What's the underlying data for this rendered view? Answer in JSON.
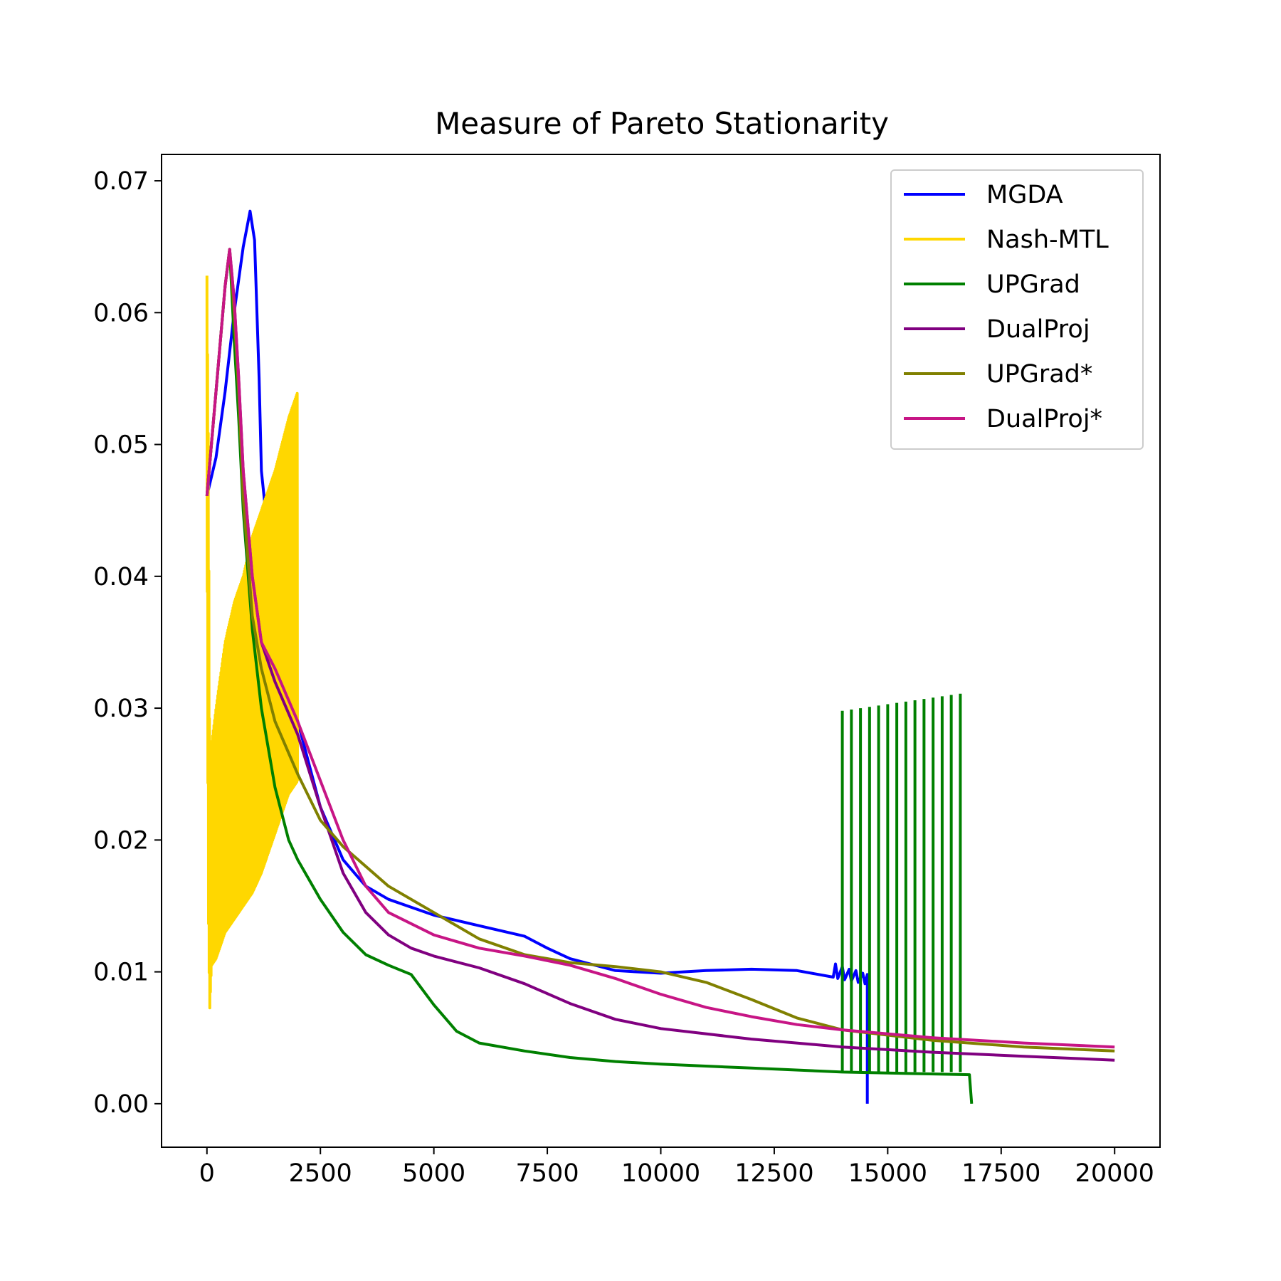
{
  "chart_data": {
    "type": "line",
    "title": "Measure of Pareto Stationarity",
    "xlabel": "",
    "ylabel": "",
    "xlim": [
      -1000,
      21000
    ],
    "ylim": [
      -0.0033,
      0.072
    ],
    "x_ticks": [
      0,
      2500,
      5000,
      7500,
      10000,
      12500,
      15000,
      17500,
      20000
    ],
    "x_tick_labels": [
      "0",
      "2500",
      "5000",
      "7500",
      "10000",
      "12500",
      "15000",
      "17500",
      "20000"
    ],
    "y_ticks": [
      0.0,
      0.01,
      0.02,
      0.03,
      0.04,
      0.05,
      0.06,
      0.07
    ],
    "y_tick_labels": [
      "0.00",
      "0.01",
      "0.02",
      "0.03",
      "0.04",
      "0.05",
      "0.06",
      "0.07"
    ],
    "grid": false,
    "legend_position": "top-right",
    "series": [
      {
        "name": "MGDA",
        "color": "#0000ff",
        "points": [
          [
            0,
            0.0461
          ],
          [
            200,
            0.049
          ],
          [
            400,
            0.054
          ],
          [
            600,
            0.06
          ],
          [
            800,
            0.065
          ],
          [
            950,
            0.0677
          ],
          [
            1050,
            0.0655
          ],
          [
            1150,
            0.055
          ],
          [
            1200,
            0.048
          ],
          [
            1500,
            0.038
          ],
          [
            2000,
            0.029
          ],
          [
            2500,
            0.0225
          ],
          [
            3000,
            0.0185
          ],
          [
            3500,
            0.0165
          ],
          [
            4000,
            0.0155
          ],
          [
            5000,
            0.0143
          ],
          [
            6000,
            0.0135
          ],
          [
            7000,
            0.0127
          ],
          [
            7500,
            0.0118
          ],
          [
            8000,
            0.011
          ],
          [
            9000,
            0.0101
          ],
          [
            10000,
            0.0099
          ],
          [
            11000,
            0.0101
          ],
          [
            12000,
            0.0102
          ],
          [
            13000,
            0.0101
          ],
          [
            13800,
            0.0096
          ],
          [
            13850,
            0.0106
          ],
          [
            13900,
            0.0095
          ],
          [
            14000,
            0.0104
          ],
          [
            14050,
            0.0094
          ],
          [
            14150,
            0.0102
          ],
          [
            14200,
            0.0093
          ],
          [
            14300,
            0.0101
          ],
          [
            14350,
            0.0092
          ],
          [
            14450,
            0.0099
          ],
          [
            14500,
            0.0091
          ],
          [
            14550,
            0.0098
          ],
          [
            14550,
            0.0
          ]
        ]
      },
      {
        "name": "Nash-MTL",
        "color": "#ffd700",
        "oscillating": true,
        "upper_envelope": [
          [
            0,
            0.0628
          ],
          [
            30,
            0.05
          ],
          [
            60,
            0.026
          ],
          [
            200,
            0.03
          ],
          [
            400,
            0.035
          ],
          [
            600,
            0.038
          ],
          [
            800,
            0.04
          ],
          [
            1000,
            0.043
          ],
          [
            1200,
            0.045
          ],
          [
            1500,
            0.048
          ],
          [
            1800,
            0.052
          ],
          [
            2000,
            0.054
          ]
        ],
        "lower_envelope": [
          [
            0,
            0.0461
          ],
          [
            30,
            0.015
          ],
          [
            60,
            0.007
          ],
          [
            100,
            0.0105
          ],
          [
            200,
            0.011
          ],
          [
            400,
            0.013
          ],
          [
            600,
            0.014
          ],
          [
            800,
            0.015
          ],
          [
            1000,
            0.016
          ],
          [
            1200,
            0.0175
          ],
          [
            1500,
            0.0205
          ],
          [
            1800,
            0.0235
          ],
          [
            2000,
            0.0245
          ]
        ]
      },
      {
        "name": "UPGrad",
        "color": "#008000",
        "points": [
          [
            0,
            0.0461
          ],
          [
            200,
            0.054
          ],
          [
            400,
            0.062
          ],
          [
            500,
            0.0648
          ],
          [
            600,
            0.058
          ],
          [
            700,
            0.052
          ],
          [
            800,
            0.045
          ],
          [
            1000,
            0.036
          ],
          [
            1200,
            0.03
          ],
          [
            1500,
            0.024
          ],
          [
            1800,
            0.02
          ],
          [
            2000,
            0.0185
          ],
          [
            2500,
            0.0155
          ],
          [
            3000,
            0.013
          ],
          [
            3500,
            0.0113
          ],
          [
            4000,
            0.0105
          ],
          [
            4500,
            0.0098
          ],
          [
            5000,
            0.0075
          ],
          [
            5500,
            0.0055
          ],
          [
            6000,
            0.0046
          ],
          [
            7000,
            0.004
          ],
          [
            8000,
            0.0035
          ],
          [
            9000,
            0.0032
          ],
          [
            10000,
            0.003
          ],
          [
            12000,
            0.0027
          ],
          [
            14000,
            0.0024
          ],
          [
            16800,
            0.0022
          ],
          [
            16850,
            0.0
          ]
        ],
        "spikes": {
          "x": [
            14000,
            14200,
            14400,
            14600,
            14800,
            15000,
            15200,
            15400,
            15600,
            15800,
            16000,
            16200,
            16400,
            16600
          ],
          "peak": [
            0.0298,
            0.0299,
            0.03,
            0.0301,
            0.0302,
            0.0303,
            0.0304,
            0.0305,
            0.0306,
            0.0307,
            0.0308,
            0.0309,
            0.031,
            0.0311
          ],
          "base": 0.0024
        }
      },
      {
        "name": "DualProj",
        "color": "#800080",
        "points": [
          [
            0,
            0.0461
          ],
          [
            200,
            0.054
          ],
          [
            400,
            0.062
          ],
          [
            500,
            0.0648
          ],
          [
            600,
            0.061
          ],
          [
            700,
            0.055
          ],
          [
            800,
            0.048
          ],
          [
            1000,
            0.04
          ],
          [
            1200,
            0.035
          ],
          [
            1500,
            0.032
          ],
          [
            2000,
            0.028
          ],
          [
            2500,
            0.0225
          ],
          [
            3000,
            0.0175
          ],
          [
            3500,
            0.0145
          ],
          [
            4000,
            0.0128
          ],
          [
            4500,
            0.0118
          ],
          [
            5000,
            0.0112
          ],
          [
            6000,
            0.0103
          ],
          [
            7000,
            0.0091
          ],
          [
            8000,
            0.0076
          ],
          [
            9000,
            0.0064
          ],
          [
            10000,
            0.0057
          ],
          [
            12000,
            0.0049
          ],
          [
            14000,
            0.0043
          ],
          [
            16000,
            0.0039
          ],
          [
            18000,
            0.0036
          ],
          [
            20000,
            0.0033
          ]
        ]
      },
      {
        "name": "UPGrad*",
        "color": "#808000",
        "points": [
          [
            0,
            0.0461
          ],
          [
            200,
            0.054
          ],
          [
            400,
            0.062
          ],
          [
            500,
            0.0648
          ],
          [
            600,
            0.06
          ],
          [
            700,
            0.054
          ],
          [
            800,
            0.046
          ],
          [
            1000,
            0.037
          ],
          [
            1200,
            0.033
          ],
          [
            1500,
            0.029
          ],
          [
            2000,
            0.025
          ],
          [
            2500,
            0.0215
          ],
          [
            3000,
            0.0195
          ],
          [
            4000,
            0.0165
          ],
          [
            5000,
            0.0145
          ],
          [
            6000,
            0.0125
          ],
          [
            7000,
            0.0113
          ],
          [
            8000,
            0.0107
          ],
          [
            9000,
            0.0104
          ],
          [
            10000,
            0.01
          ],
          [
            11000,
            0.0092
          ],
          [
            12000,
            0.0079
          ],
          [
            13000,
            0.0065
          ],
          [
            14000,
            0.0056
          ],
          [
            16000,
            0.0048
          ],
          [
            18000,
            0.0043
          ],
          [
            20000,
            0.004
          ]
        ]
      },
      {
        "name": "DualProj*",
        "color": "#c71585",
        "points": [
          [
            0,
            0.0461
          ],
          [
            200,
            0.054
          ],
          [
            400,
            0.062
          ],
          [
            500,
            0.0648
          ],
          [
            600,
            0.061
          ],
          [
            700,
            0.055
          ],
          [
            800,
            0.048
          ],
          [
            1000,
            0.04
          ],
          [
            1200,
            0.035
          ],
          [
            1500,
            0.033
          ],
          [
            2000,
            0.029
          ],
          [
            2500,
            0.0245
          ],
          [
            3000,
            0.02
          ],
          [
            3500,
            0.0165
          ],
          [
            4000,
            0.0145
          ],
          [
            5000,
            0.0128
          ],
          [
            6000,
            0.0118
          ],
          [
            7000,
            0.0112
          ],
          [
            8000,
            0.0105
          ],
          [
            9000,
            0.0095
          ],
          [
            10000,
            0.0083
          ],
          [
            11000,
            0.0073
          ],
          [
            12000,
            0.0066
          ],
          [
            13000,
            0.006
          ],
          [
            14000,
            0.0056
          ],
          [
            16000,
            0.005
          ],
          [
            18000,
            0.0046
          ],
          [
            20000,
            0.0043
          ]
        ]
      }
    ]
  }
}
